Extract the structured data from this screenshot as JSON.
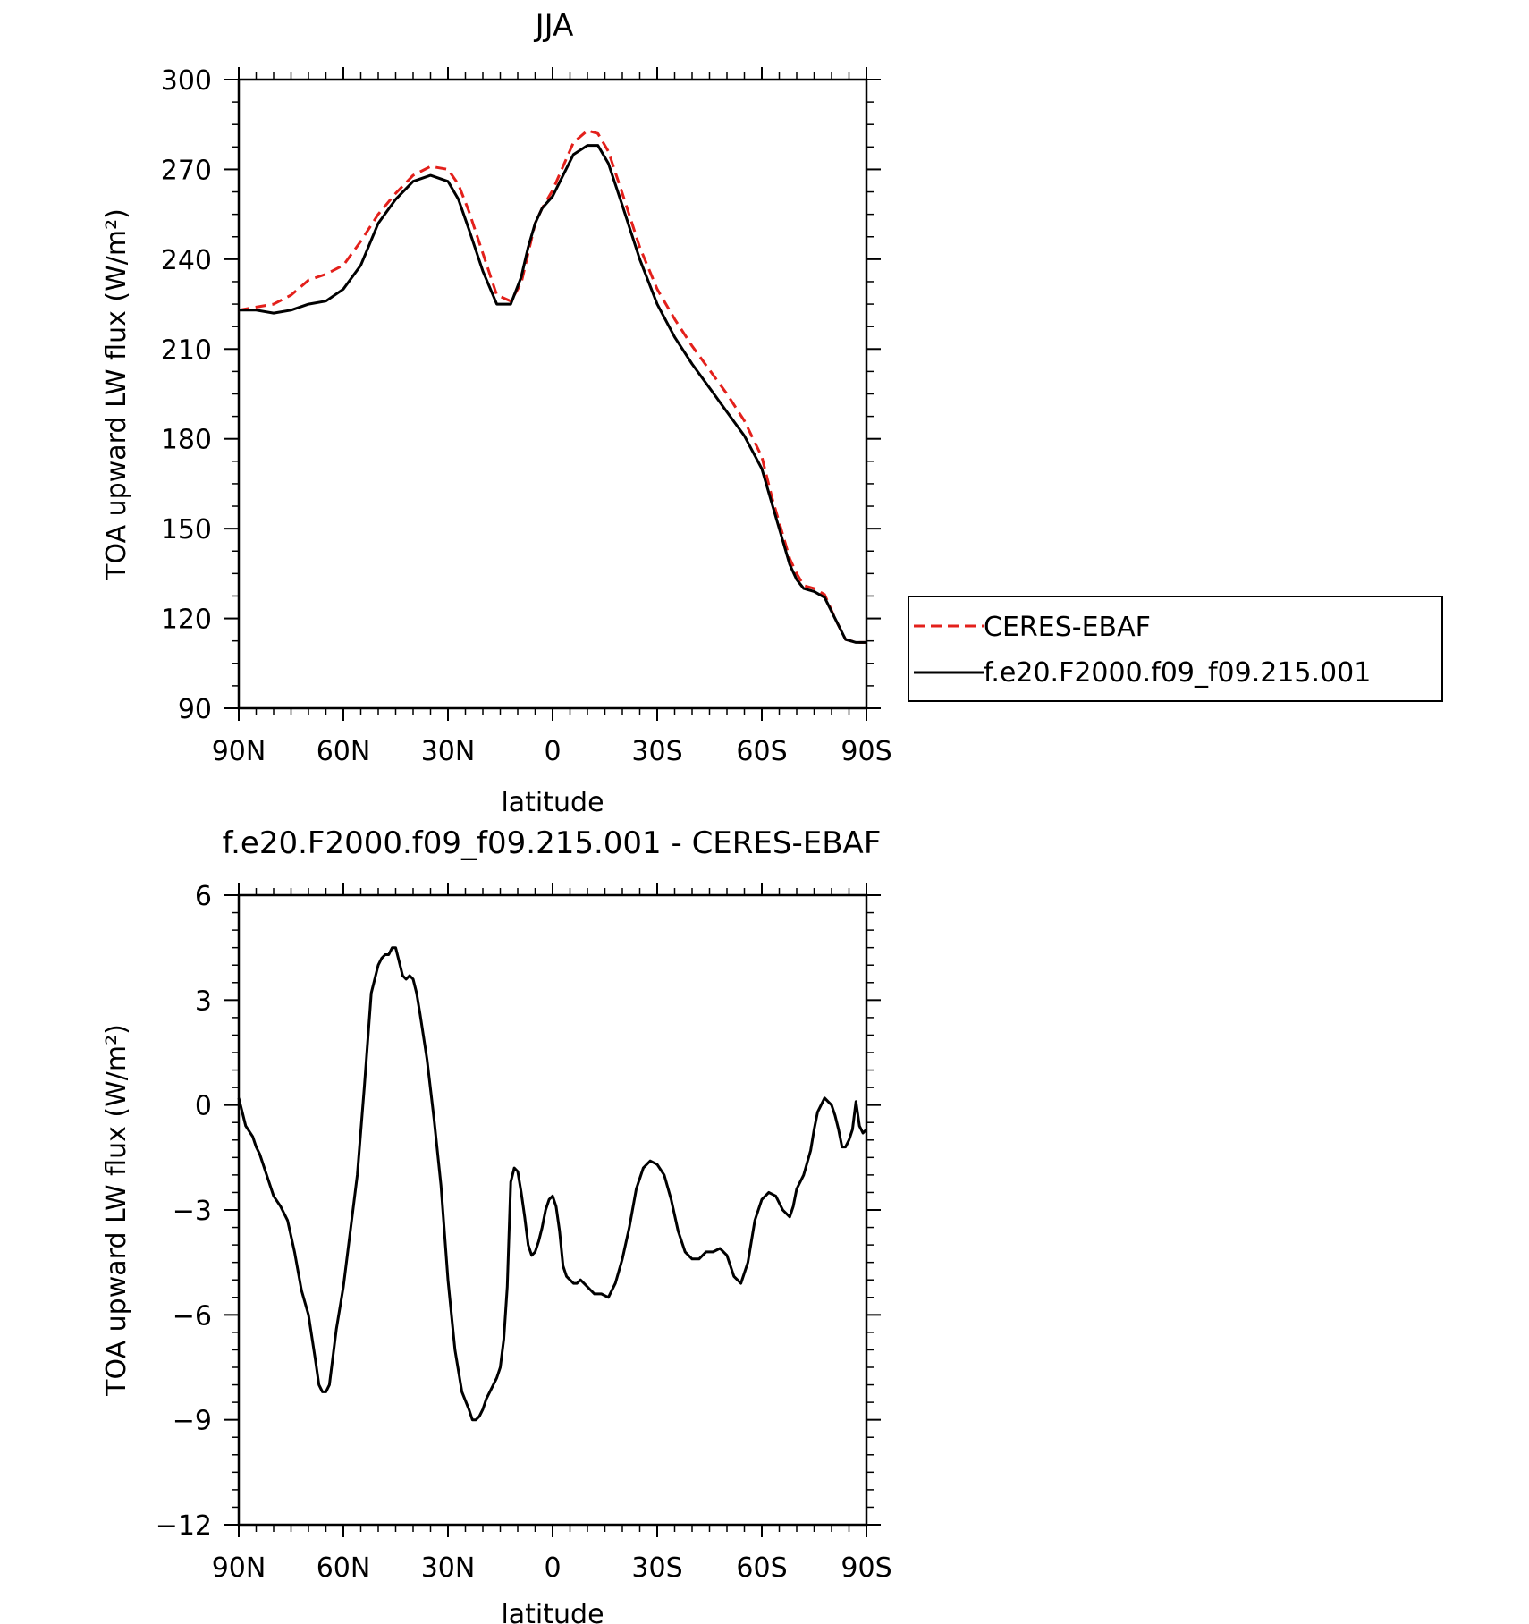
{
  "chart_data": [
    {
      "type": "line",
      "title": "JJA",
      "xlabel": "latitude",
      "ylabel": "TOA upward LW flux (W/m²)",
      "ylim": [
        90,
        300
      ],
      "xlim": [
        90,
        -90
      ],
      "xticks": [
        90,
        60,
        30,
        0,
        -30,
        -60,
        -90
      ],
      "xtick_labels": [
        "90N",
        "60N",
        "30N",
        "0",
        "30S",
        "60S",
        "90S"
      ],
      "yticks": [
        90,
        120,
        150,
        180,
        210,
        240,
        270,
        300
      ],
      "ytick_labels": [
        "90",
        "120",
        "150",
        "180",
        "210",
        "240",
        "270",
        "300"
      ],
      "grid": false,
      "legend_position": "right",
      "series": [
        {
          "name": "CERES-EBAF",
          "color": "#e3201b",
          "dash": "dashed",
          "x": [
            90,
            85,
            80,
            75,
            70,
            65,
            60,
            55,
            50,
            45,
            40,
            35,
            30,
            27,
            24,
            20,
            16,
            12,
            9,
            7,
            5,
            3,
            0,
            -3,
            -6,
            -10,
            -13,
            -16,
            -20,
            -25,
            -30,
            -35,
            -40,
            -45,
            -50,
            -55,
            -60,
            -63,
            -66,
            -68,
            -70,
            -72,
            -75,
            -78,
            -81,
            -84,
            -87,
            -90
          ],
          "y": [
            223,
            224,
            225,
            228,
            233,
            235,
            238,
            246,
            255,
            262,
            268,
            271,
            270,
            265,
            256,
            242,
            228,
            226,
            232,
            242,
            252,
            257,
            263,
            271,
            279,
            283,
            282,
            276,
            262,
            244,
            230,
            220,
            211,
            203,
            195,
            186,
            174,
            160,
            148,
            140,
            135,
            131,
            130,
            128,
            120,
            113,
            112,
            112
          ],
          "note_end": ""
        },
        {
          "name": "f.e20.F2000.f09_f09.215.001",
          "color": "#000000",
          "dash": "solid",
          "x": [
            90,
            85,
            80,
            75,
            70,
            65,
            60,
            55,
            50,
            45,
            40,
            35,
            30,
            27,
            24,
            20,
            16,
            12,
            9,
            7,
            5,
            3,
            0,
            -3,
            -6,
            -10,
            -13,
            -16,
            -20,
            -25,
            -30,
            -35,
            -40,
            -45,
            -50,
            -55,
            -60,
            -63,
            -66,
            -68,
            -70,
            -72,
            -75,
            -78,
            -81,
            -84,
            -87,
            -90
          ],
          "y": [
            223,
            223,
            222,
            223,
            225,
            226,
            230,
            238,
            252,
            260,
            266,
            268,
            266,
            260,
            250,
            236,
            225,
            225,
            234,
            244,
            252,
            257,
            261,
            268,
            275,
            278,
            278,
            272,
            258,
            240,
            225,
            214,
            205,
            197,
            189,
            181,
            170,
            158,
            146,
            138,
            133,
            130,
            129,
            127,
            120,
            113,
            112,
            112
          ]
        }
      ]
    },
    {
      "type": "line",
      "title": "f.e20.F2000.f09_f09.215.001 - CERES-EBAF",
      "xlabel": "latitude",
      "ylabel": "TOA upward LW flux (W/m²)",
      "ylim": [
        -12,
        6
      ],
      "xlim": [
        90,
        -90
      ],
      "xticks": [
        90,
        60,
        30,
        0,
        -30,
        -60,
        -90
      ],
      "xtick_labels": [
        "90N",
        "60N",
        "30N",
        "0",
        "30S",
        "60S",
        "90S"
      ],
      "yticks": [
        -12,
        -9,
        -6,
        -3,
        0,
        3,
        6
      ],
      "ytick_labels": [
        "−12",
        "−9",
        "−6",
        "−3",
        "0",
        "3",
        "6"
      ],
      "grid": false,
      "series": [
        {
          "color": "#000000",
          "dash": "solid",
          "x": [
            90,
            89,
            88,
            86,
            85,
            84,
            82,
            80,
            78,
            76,
            74,
            72,
            70,
            68,
            67,
            66,
            65,
            64,
            63,
            62,
            60,
            58,
            56,
            54,
            52,
            50,
            49,
            48,
            47,
            46,
            45,
            44,
            43,
            42,
            41,
            40,
            39,
            38,
            36,
            34,
            32,
            30,
            28,
            26,
            24,
            23,
            22,
            21,
            20,
            19,
            18,
            17,
            16,
            15,
            14,
            13,
            12,
            11,
            10,
            9,
            8,
            7,
            6,
            5,
            4,
            3,
            2,
            1,
            0,
            -1,
            -2,
            -3,
            -4,
            -5,
            -6,
            -7,
            -8,
            -9,
            -10,
            -11,
            -12,
            -14,
            -16,
            -18,
            -20,
            -22,
            -24,
            -26,
            -28,
            -30,
            -32,
            -34,
            -36,
            -38,
            -40,
            -42,
            -44,
            -46,
            -48,
            -50,
            -52,
            -54,
            -56,
            -58,
            -60,
            -62,
            -64,
            -66,
            -68,
            -69,
            -70,
            -72,
            -74,
            -75,
            -76,
            -77,
            -78,
            -79,
            -80,
            -81,
            -82,
            -83,
            -84,
            -85,
            -86,
            -87,
            -88,
            -89,
            -90
          ],
          "y": [
            0.2,
            -0.2,
            -0.6,
            -0.9,
            -1.2,
            -1.4,
            -2.0,
            -2.6,
            -2.9,
            -3.3,
            -4.2,
            -5.3,
            -6.0,
            -7.3,
            -8.0,
            -8.2,
            -8.2,
            -8.0,
            -7.2,
            -6.4,
            -5.2,
            -3.6,
            -2.0,
            0.5,
            3.2,
            4.0,
            4.2,
            4.3,
            4.3,
            4.5,
            4.5,
            4.1,
            3.7,
            3.6,
            3.7,
            3.6,
            3.2,
            2.6,
            1.3,
            -0.4,
            -2.3,
            -5.0,
            -7.0,
            -8.2,
            -8.7,
            -9.0,
            -9.0,
            -8.9,
            -8.7,
            -8.4,
            -8.2,
            -8.0,
            -7.8,
            -7.5,
            -6.7,
            -5.2,
            -2.2,
            -1.8,
            -1.9,
            -2.5,
            -3.2,
            -4.0,
            -4.3,
            -4.2,
            -3.9,
            -3.5,
            -3.0,
            -2.7,
            -2.6,
            -2.9,
            -3.6,
            -4.6,
            -4.9,
            -5.0,
            -5.1,
            -5.1,
            -5.0,
            -5.1,
            -5.2,
            -5.3,
            -5.4,
            -5.4,
            -5.5,
            -5.1,
            -4.4,
            -3.5,
            -2.4,
            -1.8,
            -1.6,
            -1.7,
            -2.0,
            -2.7,
            -3.6,
            -4.2,
            -4.4,
            -4.4,
            -4.2,
            -4.2,
            -4.1,
            -4.3,
            -4.9,
            -5.1,
            -4.5,
            -3.3,
            -2.7,
            -2.5,
            -2.6,
            -3.0,
            -3.2,
            -2.9,
            -2.4,
            -2.0,
            -1.3,
            -0.7,
            -0.2,
            0.0,
            0.2,
            0.1,
            0.0,
            -0.3,
            -0.7,
            -1.2,
            -1.2,
            -1.0,
            -0.7,
            0.1,
            -0.6,
            -0.8,
            -0.7
          ]
        }
      ]
    }
  ]
}
